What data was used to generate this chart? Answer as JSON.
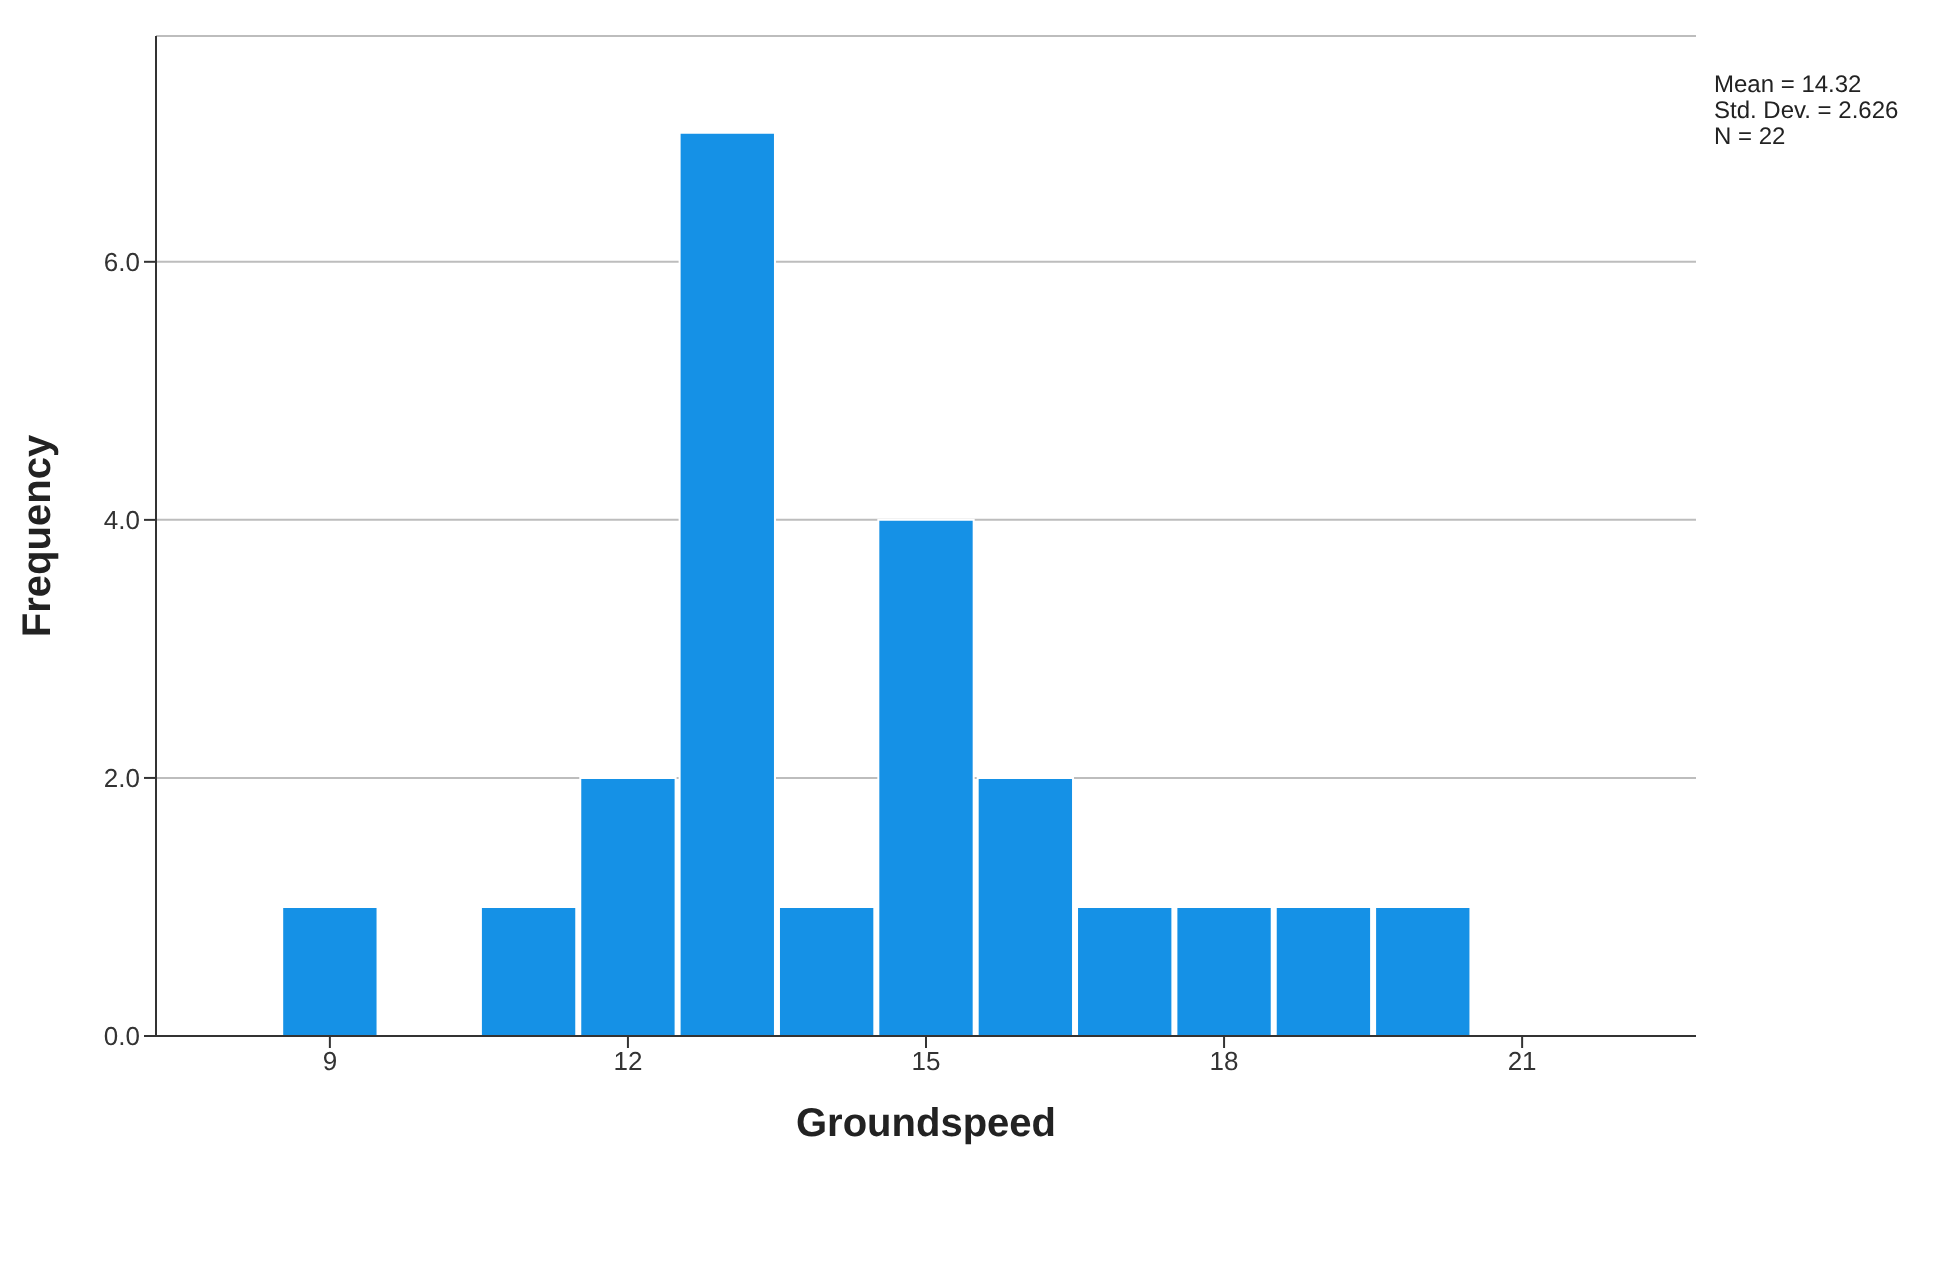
{
  "chart_data": {
    "type": "histogram",
    "xlabel": "Groundspeed",
    "ylabel": "Frequency",
    "color": "#1591e6",
    "bins": [
      8.5,
      9.5,
      10.5,
      11.5,
      12.5,
      13.5,
      14.5,
      15.5,
      16.5,
      17.5,
      18.5,
      19.5,
      20.5
    ],
    "values": [
      1,
      0,
      1,
      2,
      7,
      1,
      4,
      2,
      1,
      1,
      1,
      1
    ],
    "xlim": [
      7.25,
      22.75
    ],
    "xticks": [
      9,
      12,
      15,
      18,
      21
    ],
    "ylim": [
      0,
      7.75
    ],
    "yticks": [
      {
        "value": 0,
        "label": "0.0"
      },
      {
        "value": 2,
        "label": "2.0"
      },
      {
        "value": 4,
        "label": "4.0"
      },
      {
        "value": 6,
        "label": "6.0"
      }
    ],
    "grid": "y",
    "annotations": [
      "Mean = 14.32",
      "Std. Dev. = 2.626",
      "N = 22"
    ]
  }
}
